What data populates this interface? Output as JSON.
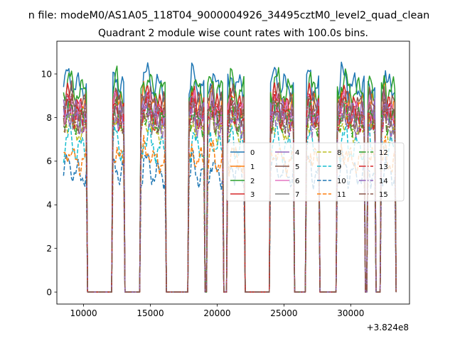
{
  "figure": {
    "suptitle": "n file: modeM0/AS1A05_118T04_9000004926_34495cztM0_level2_quad_clean"
  },
  "chart_data": {
    "type": "line",
    "title": "Quadrant 2 module wise count rates with 100.0s bins.",
    "xlabel": "",
    "ylabel": "",
    "x_offset_text": "+3.824e8",
    "xlim": [
      8000,
      34400
    ],
    "ylim": [
      -0.55,
      11.5
    ],
    "xticks": [
      10000,
      15000,
      20000,
      25000,
      30000
    ],
    "xtick_labels": [
      "10000",
      "15000",
      "20000",
      "25000",
      "30000"
    ],
    "yticks": [
      0,
      2,
      4,
      6,
      8,
      10
    ],
    "ytick_labels": [
      "0",
      "2",
      "4",
      "6",
      "8",
      "10"
    ],
    "legend_location": "center-right",
    "legend_columns": 4,
    "x_start": 8500,
    "x_step": 100,
    "n_points": 250,
    "observation_windows": [
      [
        8500,
        10200
      ],
      [
        12200,
        13000
      ],
      [
        14300,
        16100
      ],
      [
        17900,
        19000
      ],
      [
        19300,
        20400
      ],
      [
        20800,
        22000
      ],
      [
        24000,
        25700
      ],
      [
        26700,
        27600
      ],
      [
        29000,
        31000
      ],
      [
        31300,
        31800
      ],
      [
        32300,
        33300
      ]
    ],
    "series_levels": [
      {
        "name": "0",
        "color": "#1f77b4",
        "dash": "solid",
        "level": 9.4
      },
      {
        "name": "1",
        "color": "#ff7f0e",
        "dash": "solid",
        "level": 8.5
      },
      {
        "name": "2",
        "color": "#2ca02c",
        "dash": "solid",
        "level": 9.2
      },
      {
        "name": "3",
        "color": "#d62728",
        "dash": "solid",
        "level": 8.4
      },
      {
        "name": "4",
        "color": "#9467bd",
        "dash": "solid",
        "level": 8.2
      },
      {
        "name": "5",
        "color": "#8c564b",
        "dash": "solid",
        "level": 8.5
      },
      {
        "name": "6",
        "color": "#e377c2",
        "dash": "solid",
        "level": 8.1
      },
      {
        "name": "7",
        "color": "#7f7f7f",
        "dash": "solid",
        "level": 7.9
      },
      {
        "name": "8",
        "color": "#bcbd22",
        "dash": "dashed",
        "level": 7.4
      },
      {
        "name": "9",
        "color": "#17becf",
        "dash": "dashed",
        "level": 6.6
      },
      {
        "name": "10",
        "color": "#1f77b4",
        "dash": "dashed",
        "level": 5.4
      },
      {
        "name": "11",
        "color": "#ff7f0e",
        "dash": "dashed",
        "level": 6.0
      },
      {
        "name": "12",
        "color": "#2ca02c",
        "dash": "dashdot",
        "level": 7.8
      },
      {
        "name": "13",
        "color": "#d62728",
        "dash": "dashdot",
        "level": 8.0
      },
      {
        "name": "14",
        "color": "#9467bd",
        "dash": "dashdot",
        "level": 7.7
      },
      {
        "name": "15",
        "color": "#8c564b",
        "dash": "dashdot",
        "level": 7.9
      }
    ],
    "series": []
  }
}
